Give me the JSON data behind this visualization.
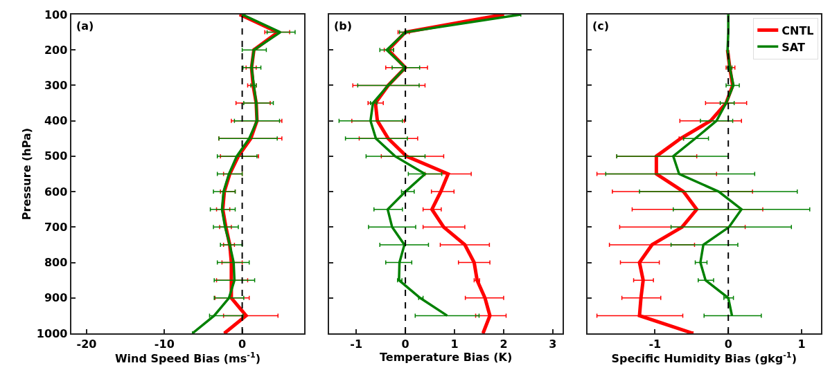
{
  "chart_data": [
    {
      "type": "line",
      "orientation": "horizontal",
      "xlabel": "Wind Speed Bias (ms$^{-1}$)",
      "ylabel": "Pressure (hPa)",
      "annotations": [
        "(a)"
      ],
      "x": [
        100,
        150,
        200,
        250,
        300,
        350,
        400,
        450,
        500,
        550,
        600,
        650,
        700,
        750,
        800,
        850,
        900,
        950,
        1000
      ],
      "xlim": [
        -22,
        8
      ],
      "xticks": [
        -20,
        -10,
        0
      ],
      "ylim": [
        1000,
        100
      ],
      "yticks": [
        100,
        200,
        300,
        400,
        500,
        600,
        700,
        800,
        900,
        1000
      ],
      "ref_lines": [
        {
          "axis": "x",
          "value": 0,
          "color": "#000000",
          "line_style": "dashed"
        }
      ],
      "legend": false,
      "series": [
        {
          "color": "#ff0000",
          "values": [
            -0.3,
            4.6,
            1.5,
            1.2,
            1.4,
            1.8,
            1.9,
            1.1,
            -0.5,
            -1.6,
            -2.3,
            -2.5,
            -2.1,
            -1.6,
            -1.4,
            -1.4,
            -1.4,
            0.5,
            -2.3
          ],
          "errors": [
            null,
            [
              2.9,
              6.1
            ],
            null,
            [
              0.5,
              1.8
            ],
            [
              0.7,
              1.8
            ],
            [
              -0.8,
              3.6
            ],
            [
              -1.4,
              5.1
            ],
            [
              -3.0,
              5.1
            ],
            [
              -2.8,
              2.1
            ],
            [
              -2.4,
              0
            ],
            [
              -2.8,
              -0.9
            ],
            [
              -3.3,
              -1.6
            ],
            [
              -2.9,
              -1.4
            ],
            [
              -2.4,
              -1.0
            ],
            [
              -2.6,
              0
            ],
            [
              -3.3,
              0.7
            ],
            [
              -3.5,
              0.9
            ],
            [
              -2.4,
              4.6
            ],
            null
          ]
        },
        {
          "color": "#008000",
          "values": [
            0,
            4.9,
            1.5,
            1.2,
            1.5,
            1.8,
            1.9,
            0.9,
            -0.7,
            -1.7,
            -2.4,
            -2.6,
            -2.2,
            -1.6,
            -1.1,
            -1.0,
            -1.7,
            -3.6,
            -6.4
          ],
          "errors": [
            null,
            [
              3.2,
              6.8
            ],
            [
              0,
              3.1
            ],
            [
              0.1,
              2.4
            ],
            [
              1.1,
              1.8
            ],
            [
              0.2,
              4.0
            ],
            [
              -1.0,
              4.8
            ],
            [
              -3.0,
              4.5
            ],
            [
              -3.2,
              1.9
            ],
            [
              -3.2,
              0
            ],
            [
              -3.7,
              -0.9
            ],
            [
              -4.1,
              -0.9
            ],
            [
              -3.7,
              -0.5
            ],
            [
              -2.8,
              0
            ],
            [
              -3.2,
              0.9
            ],
            [
              -3.6,
              1.6
            ],
            [
              -3.6,
              0.2
            ],
            [
              -4.2,
              0.1
            ],
            null
          ]
        }
      ]
    },
    {
      "type": "line",
      "orientation": "horizontal",
      "xlabel": "Temperature Bias (K)",
      "annotations": [
        "(b)"
      ],
      "tick_labels": "x",
      "x": [
        100,
        150,
        200,
        250,
        300,
        350,
        400,
        450,
        500,
        550,
        600,
        650,
        700,
        750,
        800,
        850,
        900,
        950,
        1000
      ],
      "xlim": [
        -1.55,
        3.2
      ],
      "xticks": [
        -1,
        0,
        1,
        2,
        3
      ],
      "ylim": [
        1000,
        100
      ],
      "yticks": [
        100,
        200,
        300,
        400,
        500,
        600,
        700,
        800,
        900,
        1000
      ],
      "ref_lines": [
        {
          "axis": "x",
          "value": 0,
          "color": "#000000",
          "line_style": "dashed"
        }
      ],
      "legend": false,
      "series": [
        {
          "color": "#ff0000",
          "values": [
            2.0,
            0.0,
            -0.35,
            0.0,
            -0.35,
            -0.61,
            -0.57,
            -0.35,
            0.02,
            0.87,
            0.72,
            0.54,
            0.78,
            1.21,
            1.4,
            1.46,
            1.62,
            1.72,
            1.58
          ],
          "errors": [
            null,
            [
              -0.15,
              0.08
            ],
            [
              -0.43,
              -0.24
            ],
            [
              -0.4,
              0.45
            ],
            [
              -1.07,
              0.4
            ],
            [
              -0.76,
              -0.45
            ],
            [
              -1.09,
              -0.02
            ],
            [
              -0.94,
              0.25
            ],
            [
              -0.49,
              0.78
            ],
            [
              0.4,
              1.34
            ],
            [
              0.53,
              0.99
            ],
            [
              0.36,
              0.73
            ],
            [
              0.36,
              1.21
            ],
            [
              0.71,
              1.71
            ],
            [
              1.08,
              1.72
            ],
            [
              1.4,
              1.51
            ],
            [
              1.22,
              2.0
            ],
            [
              1.43,
              2.05
            ],
            null
          ]
        },
        {
          "color": "#008000",
          "values": [
            2.35,
            0.0,
            -0.38,
            0.0,
            -0.35,
            -0.66,
            -0.71,
            -0.6,
            -0.21,
            0.4,
            0.0,
            -0.36,
            -0.27,
            -0.02,
            -0.12,
            -0.13,
            0.3,
            0.85,
            null
          ],
          "errors": [
            null,
            [
              -0.12,
              0.01
            ],
            [
              -0.52,
              -0.24
            ],
            [
              -0.27,
              0.29
            ],
            [
              -0.97,
              0.28
            ],
            [
              -0.71,
              -0.58
            ],
            [
              -1.35,
              -0.06
            ],
            [
              -1.22,
              0.04
            ],
            [
              -0.8,
              0.4
            ],
            [
              0.06,
              0.74
            ],
            [
              -0.08,
              0.18
            ],
            [
              -0.64,
              -0.06
            ],
            [
              -0.75,
              0.21
            ],
            [
              -0.52,
              0.47
            ],
            [
              -0.4,
              0.13
            ],
            [
              -0.16,
              -0.07
            ],
            [
              0.27,
              0.36
            ],
            [
              0.2,
              1.5
            ],
            null
          ]
        }
      ]
    },
    {
      "type": "line",
      "orientation": "horizontal",
      "xlabel": "Specific Humidity Bias (gkg$^{-1}$)",
      "annotations": [
        "(c)"
      ],
      "tick_labels": "x",
      "x": [
        100,
        150,
        200,
        250,
        300,
        350,
        400,
        450,
        500,
        550,
        600,
        650,
        700,
        750,
        800,
        850,
        900,
        950,
        1000
      ],
      "xlim": [
        -1.92,
        1.26
      ],
      "xticks": [
        -1,
        0,
        1
      ],
      "ylim": [
        1000,
        100
      ],
      "yticks": [
        100,
        200,
        300,
        400,
        500,
        600,
        700,
        800,
        900,
        1000
      ],
      "ref_lines": [
        {
          "axis": "x",
          "value": 0,
          "color": "#000000",
          "line_style": "dashed"
        }
      ],
      "legend": "top right",
      "series": [
        {
          "name": "CNTL",
          "color": "#ff0000",
          "values": [
            null,
            null,
            -0.01,
            0.02,
            0.06,
            -0.03,
            -0.24,
            -0.65,
            -0.98,
            -0.98,
            -0.61,
            -0.43,
            -0.63,
            -1.04,
            -1.21,
            -1.16,
            -1.19,
            -1.21,
            -0.48
          ],
          "errors": [
            null,
            null,
            null,
            [
              -0.03,
              0.09
            ],
            null,
            [
              -0.31,
              0.25
            ],
            [
              -0.66,
              0.18
            ],
            [
              -0.67,
              -0.61
            ],
            [
              -1.52,
              -0.43
            ],
            [
              -1.79,
              -0.16
            ],
            [
              -1.58,
              0.33
            ],
            [
              -1.31,
              0.47
            ],
            [
              -1.48,
              0.23
            ],
            [
              -1.62,
              -0.46
            ],
            [
              -1.47,
              -0.94
            ],
            [
              -1.29,
              -1.02
            ],
            [
              -1.45,
              -0.92
            ],
            [
              -1.79,
              -0.62
            ],
            null
          ]
        },
        {
          "name": "SAT",
          "color": "#008000",
          "values": [
            0,
            0,
            -0.01,
            0.02,
            0.07,
            -0.03,
            -0.16,
            -0.45,
            -0.75,
            -0.67,
            -0.13,
            0.18,
            0.01,
            -0.34,
            -0.38,
            -0.31,
            0.0,
            0.05,
            null
          ],
          "errors": [
            null,
            null,
            null,
            [
              -0.01,
              0.05
            ],
            [
              -0.03,
              0.15
            ],
            [
              -0.11,
              0.08
            ],
            [
              -0.38,
              0.06
            ],
            [
              -0.61,
              -0.27
            ],
            [
              -1.52,
              0.0
            ],
            [
              -1.67,
              0.36
            ],
            [
              -1.21,
              0.94
            ],
            [
              -0.75,
              1.11
            ],
            [
              -0.78,
              0.86
            ],
            [
              -0.78,
              0.13
            ],
            [
              -0.45,
              -0.29
            ],
            [
              -0.41,
              -0.2
            ],
            [
              -0.06,
              0.07
            ],
            [
              -0.33,
              0.45
            ],
            null
          ]
        }
      ]
    }
  ]
}
